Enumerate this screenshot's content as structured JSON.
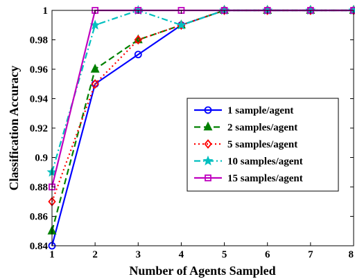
{
  "chart_data": {
    "type": "line",
    "xlabel": "Number of Agents Sampled",
    "ylabel": "Classification Accuracy",
    "xlim": [
      1,
      8
    ],
    "ylim": [
      0.84,
      1.0
    ],
    "x_ticks": [
      "1",
      "2",
      "3",
      "4",
      "5",
      "6",
      "7",
      "8"
    ],
    "y_ticks": [
      "0.84",
      "0.86",
      "0.88",
      "0.9",
      "0.92",
      "0.94",
      "0.96",
      "0.98",
      "1"
    ],
    "grid": false,
    "legend_position": "center-right",
    "x": [
      1,
      2,
      3,
      4,
      5,
      6,
      7,
      8
    ],
    "series": [
      {
        "name": "1 sample/agent",
        "values": [
          0.84,
          0.95,
          0.97,
          0.99,
          1.0,
          1.0,
          1.0,
          1.0
        ],
        "color": "#0000ff",
        "line_style": "solid",
        "marker": "circle"
      },
      {
        "name": "2 samples/agent",
        "values": [
          0.85,
          0.96,
          0.98,
          0.99,
          1.0,
          1.0,
          1.0,
          1.0
        ],
        "color": "#008000",
        "line_style": "dashed",
        "marker": "triangle"
      },
      {
        "name": "5 samples/agent",
        "values": [
          0.87,
          0.95,
          0.98,
          0.99,
          1.0,
          1.0,
          1.0,
          1.0
        ],
        "color": "#ff0000",
        "line_style": "dotted",
        "marker": "diamond"
      },
      {
        "name": "10 samples/agent",
        "values": [
          0.89,
          0.99,
          1.0,
          0.99,
          1.0,
          1.0,
          1.0,
          1.0
        ],
        "color": "#00bfbf",
        "line_style": "dashdot",
        "marker": "star"
      },
      {
        "name": "15 samples/agent",
        "values": [
          0.88,
          1.0,
          1.0,
          1.0,
          1.0,
          1.0,
          1.0,
          1.0
        ],
        "color": "#bf00bf",
        "line_style": "solid",
        "marker": "square"
      }
    ]
  }
}
